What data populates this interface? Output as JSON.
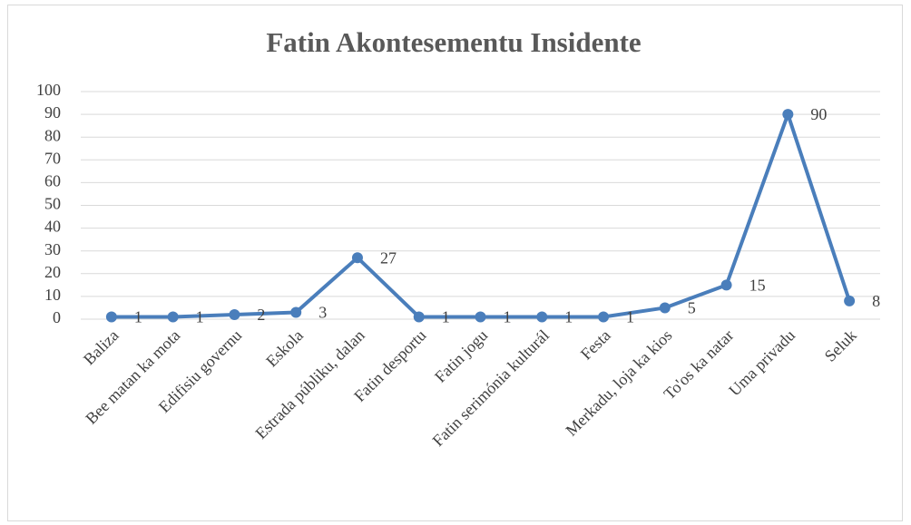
{
  "chart_data": {
    "type": "line",
    "title": "Fatin Akontesementu Insidente",
    "categories": [
      "Baliza",
      "Bee matan ka mota",
      "Edifisiu governu",
      "Eskola",
      "Estrada públiku, dalan",
      "Fatin desportu",
      "Fatin jogu",
      "Fatin serimónia kulturál",
      "Festa",
      "Merkadu, loja ka kios",
      "To'os ka natar",
      "Uma privadu",
      "Seluk"
    ],
    "values": [
      1,
      1,
      2,
      3,
      27,
      1,
      1,
      1,
      1,
      5,
      15,
      90,
      8
    ],
    "color": "#4a7ebb",
    "ylim": [
      0,
      100
    ],
    "yticks": [
      0,
      10,
      20,
      30,
      40,
      50,
      60,
      70,
      80,
      90,
      100
    ],
    "grid": true
  }
}
